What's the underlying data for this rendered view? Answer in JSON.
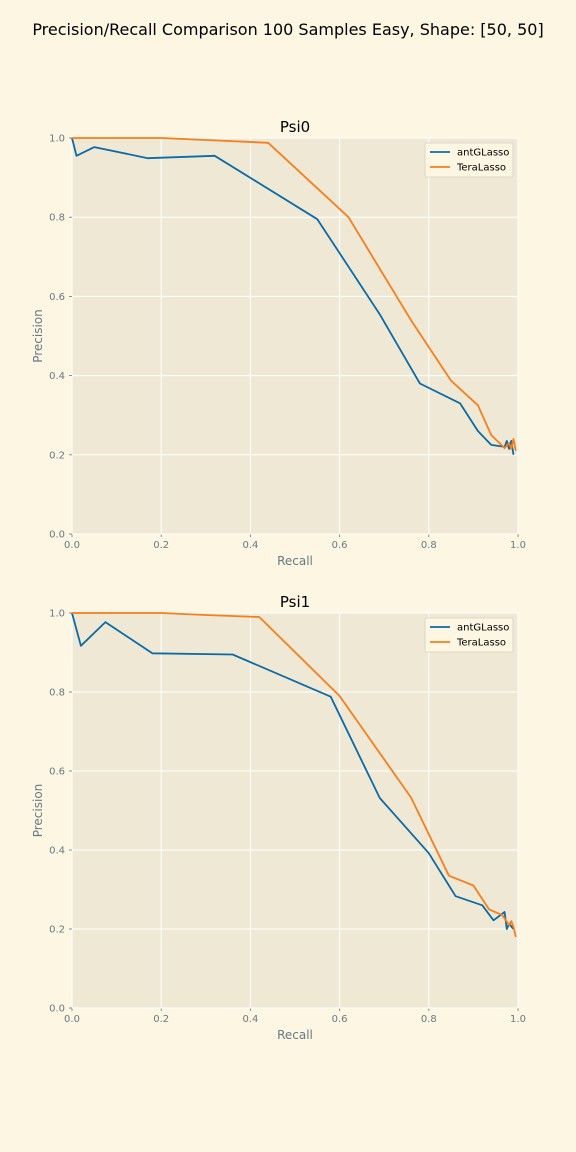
{
  "figure": {
    "title": "Precision/Recall Comparison 100 Samples Easy, Shape: [50, 50]"
  },
  "colors": {
    "figure_background": "#fdf6e3",
    "axes_background": "#efe8d5",
    "grid": "#ffffff",
    "antGLasso": "#0c6ba6",
    "TeraLasso": "#f57f1d"
  },
  "chart_data": [
    {
      "type": "line",
      "title": "Psi0",
      "xlabel": "Recall",
      "ylabel": "Precision",
      "xlim": [
        0,
        1
      ],
      "ylim": [
        0,
        1
      ],
      "xticks": [
        "0.0",
        "0.2",
        "0.4",
        "0.6",
        "0.8",
        "1.0"
      ],
      "yticks": [
        "0.0",
        "0.2",
        "0.4",
        "0.6",
        "0.8",
        "1.0"
      ],
      "grid": true,
      "legend": "top-right",
      "series": [
        {
          "name": "antGLasso",
          "color": "#0c6ba6",
          "points": [
            [
              0.0,
              1.0
            ],
            [
              0.01,
              0.955
            ],
            [
              0.05,
              0.977
            ],
            [
              0.17,
              0.949
            ],
            [
              0.32,
              0.955
            ],
            [
              0.55,
              0.795
            ],
            [
              0.69,
              0.555
            ],
            [
              0.78,
              0.38
            ],
            [
              0.87,
              0.33
            ],
            [
              0.91,
              0.26
            ],
            [
              0.94,
              0.225
            ],
            [
              0.97,
              0.22
            ],
            [
              0.975,
              0.235
            ],
            [
              0.98,
              0.215
            ],
            [
              0.985,
              0.235
            ],
            [
              0.99,
              0.2
            ]
          ]
        },
        {
          "name": "TeraLasso",
          "color": "#f57f1d",
          "points": [
            [
              0.0,
              1.0
            ],
            [
              0.2,
              1.0
            ],
            [
              0.3,
              0.995
            ],
            [
              0.44,
              0.988
            ],
            [
              0.62,
              0.8
            ],
            [
              0.76,
              0.54
            ],
            [
              0.85,
              0.387
            ],
            [
              0.91,
              0.325
            ],
            [
              0.94,
              0.25
            ],
            [
              0.97,
              0.217
            ],
            [
              0.98,
              0.23
            ],
            [
              0.985,
              0.215
            ],
            [
              0.99,
              0.24
            ],
            [
              0.995,
              0.21
            ]
          ]
        }
      ]
    },
    {
      "type": "line",
      "title": "Psi1",
      "xlabel": "Recall",
      "ylabel": "Precision",
      "xlim": [
        0,
        1
      ],
      "ylim": [
        0,
        1
      ],
      "xticks": [
        "0.0",
        "0.2",
        "0.4",
        "0.6",
        "0.8",
        "1.0"
      ],
      "yticks": [
        "0.0",
        "0.2",
        "0.4",
        "0.6",
        "0.8",
        "1.0"
      ],
      "grid": true,
      "legend": "top-right",
      "series": [
        {
          "name": "antGLasso",
          "color": "#0c6ba6",
          "points": [
            [
              0.0,
              1.0
            ],
            [
              0.02,
              0.917
            ],
            [
              0.075,
              0.977
            ],
            [
              0.18,
              0.898
            ],
            [
              0.36,
              0.895
            ],
            [
              0.58,
              0.788
            ],
            [
              0.69,
              0.532
            ],
            [
              0.8,
              0.392
            ],
            [
              0.86,
              0.283
            ],
            [
              0.92,
              0.26
            ],
            [
              0.945,
              0.222
            ],
            [
              0.97,
              0.243
            ],
            [
              0.975,
              0.2
            ],
            [
              0.98,
              0.213
            ],
            [
              0.99,
              0.2
            ]
          ]
        },
        {
          "name": "TeraLasso",
          "color": "#f57f1d",
          "points": [
            [
              0.0,
              1.0
            ],
            [
              0.2,
              1.0
            ],
            [
              0.3,
              0.995
            ],
            [
              0.42,
              0.99
            ],
            [
              0.6,
              0.79
            ],
            [
              0.76,
              0.533
            ],
            [
              0.845,
              0.335
            ],
            [
              0.9,
              0.31
            ],
            [
              0.935,
              0.25
            ],
            [
              0.965,
              0.235
            ],
            [
              0.98,
              0.21
            ],
            [
              0.985,
              0.22
            ],
            [
              0.99,
              0.205
            ],
            [
              0.995,
              0.18
            ]
          ]
        }
      ]
    }
  ]
}
